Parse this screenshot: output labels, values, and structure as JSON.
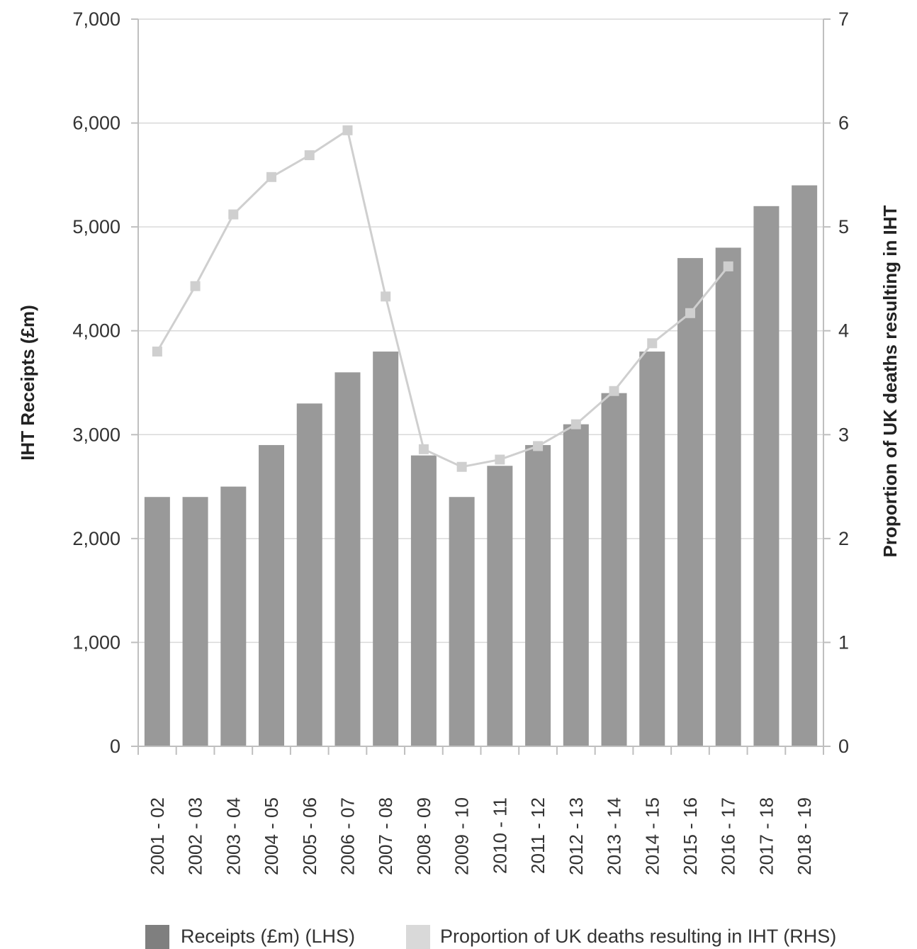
{
  "chart_data": {
    "type": "bar",
    "categories": [
      "2001 - 02",
      "2002 - 03",
      "2003 - 04",
      "2004 - 05",
      "2005 - 06",
      "2006 - 07",
      "2007 - 08",
      "2008 - 09",
      "2009 - 10",
      "2010 - 11",
      "2011 - 12",
      "2012 - 13",
      "2013 - 14",
      "2014 - 15",
      "2015 - 16",
      "2016 - 17",
      "2017 - 18",
      "2018 - 19"
    ],
    "series": [
      {
        "name": "Receipts (£m) (LHS)",
        "type": "bar",
        "axis": "left",
        "color": "#999999",
        "values": [
          2400,
          2400,
          2500,
          2900,
          3300,
          3600,
          3800,
          2800,
          2400,
          2700,
          2900,
          3100,
          3400,
          3800,
          4700,
          4800,
          5200,
          5400
        ]
      },
      {
        "name": "Proportion of UK deaths resulting in IHT (RHS)",
        "type": "line",
        "axis": "right",
        "color": "#cfcfcf",
        "values": [
          3.8,
          4.43,
          5.12,
          5.48,
          5.69,
          5.93,
          4.33,
          2.86,
          2.69,
          2.76,
          2.89,
          3.1,
          3.42,
          3.88,
          4.17,
          4.62,
          null,
          null
        ]
      }
    ],
    "ylabel": "IHT Receipts (£m)",
    "y2label": "Proportion of UK deaths resulting in IHT",
    "ylim": [
      0,
      7000
    ],
    "y2lim": [
      0,
      7
    ],
    "yticks": [
      "0",
      "1,000",
      "2,000",
      "3,000",
      "4,000",
      "5,000",
      "6,000",
      "7,000"
    ],
    "y2ticks": [
      "0",
      "1",
      "2",
      "3",
      "4",
      "5",
      "6",
      "7"
    ],
    "grid": true,
    "legend": "bottom",
    "legend_colors": [
      "#7f7f7f",
      "#d9d9d9"
    ]
  }
}
